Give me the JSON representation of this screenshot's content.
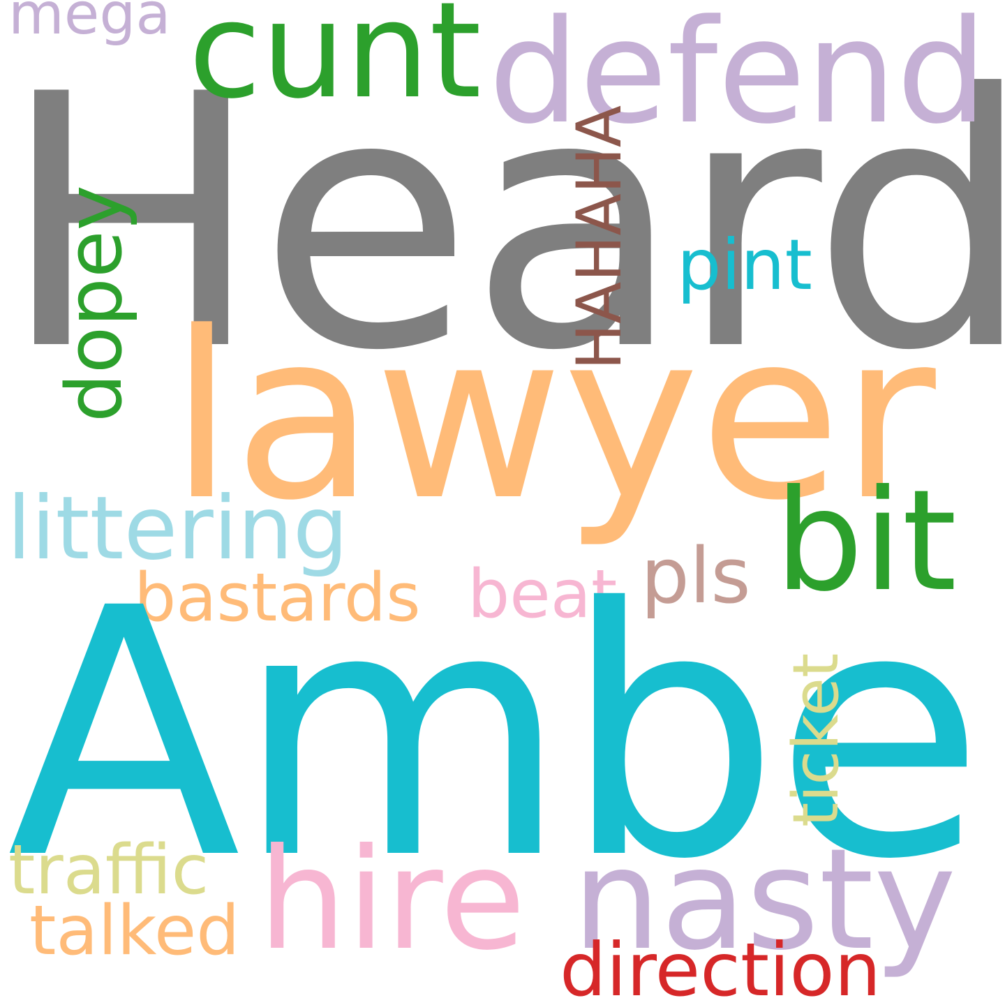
{
  "words": {
    "heard": "Heard",
    "amber": "Amber",
    "lawyer": "lawyer",
    "defend": "defend",
    "cunt": "cunt",
    "bit": "bit",
    "nasty": "nasty",
    "hire": "hire",
    "littering": "littering",
    "bastards": "bastards",
    "beat": "beat",
    "pls": "pls",
    "pint": "pint",
    "mega": "mega",
    "traffic": "traffic",
    "talked": "talked",
    "direction": "direction",
    "hahaha": "HAHAHA",
    "dopey": "dopey",
    "ticket": "ticket"
  },
  "colors": {
    "gray": "#7f7f7f",
    "cyan": "#17becf",
    "light_orange": "#ffbb78",
    "lavender": "#c5b0d5",
    "green": "#2ca02c",
    "pink": "#f7b6d2",
    "light_cyan": "#9edae5",
    "tan": "#c49c94",
    "olive_light": "#dbdb8d",
    "red": "#d62728",
    "brown": "#8c564b"
  }
}
